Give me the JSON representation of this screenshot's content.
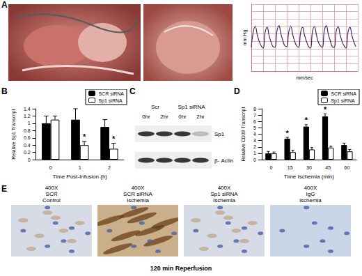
{
  "panel_labels": [
    "A",
    "B",
    "C",
    "D",
    "E"
  ],
  "chart_data": [
    {
      "type": "line",
      "ylabel": "mm Hg",
      "xlabel": "mm/sec",
      "x": [
        0,
        1,
        2,
        3,
        4,
        5,
        6,
        7,
        8,
        9,
        10,
        11,
        12,
        13,
        14,
        15,
        16,
        17,
        18,
        19,
        20,
        21,
        22,
        23,
        24,
        25,
        26,
        27,
        28,
        29,
        30,
        31,
        32,
        33,
        34,
        35,
        36,
        37,
        38,
        39,
        40,
        41,
        42,
        43,
        44,
        45,
        46,
        47,
        48,
        49,
        50,
        51,
        52,
        53
      ],
      "values": [
        72,
        93,
        100,
        89,
        80,
        74,
        71,
        92,
        99,
        88,
        79,
        73,
        72,
        94,
        101,
        90,
        81,
        74,
        73,
        93,
        100,
        89,
        80,
        74,
        72,
        92,
        99,
        88,
        80,
        73,
        71,
        93,
        100,
        89,
        79,
        74,
        72,
        94,
        101,
        90,
        81,
        73,
        72,
        93,
        100,
        89,
        80,
        74,
        71,
        92,
        99,
        88,
        79,
        73
      ],
      "xlim": [
        0,
        54
      ],
      "xticks": [
        0,
        6,
        12,
        18,
        24,
        30,
        36,
        42,
        48,
        54
      ],
      "ylim": [
        40,
        130
      ],
      "yticks": [
        40,
        50,
        60,
        70,
        80,
        90,
        100,
        110,
        120,
        130
      ],
      "grid": true,
      "tick_labels": false,
      "color": "#3a2a6a"
    },
    {
      "type": "bar",
      "categories": [
        "0",
        "1",
        "2"
      ],
      "xlabel": "Time Post-Infusion (h)",
      "ylabel": "Relative Sp1 Transcript",
      "ylim": [
        0,
        1.4
      ],
      "yticks": [
        0,
        0.2,
        0.4,
        0.6,
        0.8,
        1,
        1.2,
        1.4
      ],
      "legend": "top-right",
      "grid": false,
      "series": [
        {
          "name": "SCR siRNA",
          "color": "#000000",
          "values": [
            1.0,
            1.1,
            0.9
          ],
          "error": [
            0.2,
            0.3,
            0.2
          ]
        },
        {
          "name": "Sp1 siRNA",
          "color": "#ffffff",
          "values": [
            1.1,
            0.4,
            0.3
          ],
          "error": [
            0.1,
            0.1,
            0.15
          ],
          "annotations": [
            {
              "category": "1",
              "text": "*"
            },
            {
              "category": "2",
              "text": "*"
            }
          ]
        }
      ]
    },
    {
      "type": "bar",
      "categories": [
        "0",
        "15",
        "30",
        "45",
        "60"
      ],
      "xlabel": "Time Ischemia (min)",
      "ylabel": "Relative CD39 Transcript",
      "ylim": [
        0,
        8
      ],
      "yticks": [
        0,
        1,
        2,
        3,
        4,
        5,
        6,
        7,
        8
      ],
      "legend": "top-right",
      "grid": false,
      "series": [
        {
          "name": "SCR siRNA",
          "color": "#000000",
          "values": [
            1.0,
            3.3,
            5.2,
            6.8,
            2.3
          ],
          "error": [
            0.3,
            0.2,
            0.3,
            0.4,
            0.3
          ],
          "annotations": [
            {
              "category": "15",
              "text": "*"
            },
            {
              "category": "30",
              "text": "*"
            },
            {
              "category": "45",
              "text": "*"
            }
          ]
        },
        {
          "name": "Sp1 siRNA",
          "color": "#ffffff",
          "values": [
            1.0,
            1.2,
            1.6,
            1.9,
            1.3
          ],
          "error": [
            0.2,
            0.3,
            0.3,
            0.2,
            0.3
          ]
        }
      ]
    }
  ],
  "blot": {
    "groups": [
      "Scr",
      "Sp1 siRNA"
    ],
    "lanes": [
      "0hr",
      "2hr",
      "0hr",
      "2hr"
    ],
    "rows": [
      "Sp1",
      "β- Actin"
    ]
  },
  "histology": {
    "panels": [
      {
        "lines": [
          "400X",
          "SCR",
          "Control"
        ]
      },
      {
        "lines": [
          "400X",
          "SCR siRNA",
          "Ischemia"
        ]
      },
      {
        "lines": [
          "400X",
          "Sp1 siRNA",
          "Ischemia"
        ]
      },
      {
        "lines": [
          "400X",
          "IgG",
          "ischemia"
        ]
      }
    ],
    "caption": "120 min Reperfusion"
  }
}
